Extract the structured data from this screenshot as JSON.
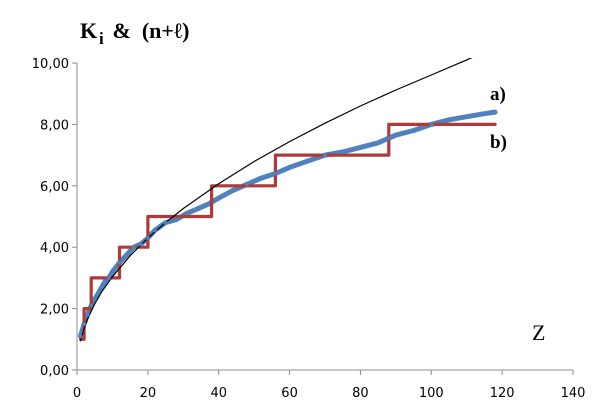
{
  "chart_data": {
    "type": "line",
    "title_main": "K",
    "title_sub": "i",
    "title_rest": " &  (n+ℓ)",
    "xlabel": "Z",
    "ylabel": "",
    "xlim": [
      0,
      140
    ],
    "ylim": [
      0,
      10
    ],
    "x_ticks": [
      "0",
      "20",
      "40",
      "60",
      "80",
      "100",
      "120",
      "140"
    ],
    "y_ticks": [
      "0,00",
      "2,00",
      "4,00",
      "6,00",
      "8,00",
      "10,00"
    ],
    "grid": false,
    "colors": {
      "a": "#4f81bd",
      "b": "#b03a3a",
      "trend": "#000000"
    },
    "annotations": [
      {
        "text": "a)",
        "series": "a"
      },
      {
        "text": "b)",
        "series": "b"
      }
    ],
    "series": [
      {
        "key": "a",
        "x": [
          1,
          2,
          3,
          4,
          5,
          6,
          7,
          8,
          9,
          10,
          12,
          14,
          16,
          18,
          20,
          22,
          25,
          28,
          31,
          34,
          37,
          40,
          44,
          48,
          52,
          56,
          60,
          65,
          70,
          75,
          80,
          85,
          88,
          90,
          95,
          100,
          105,
          110,
          115,
          118
        ],
        "y": [
          1.1,
          1.5,
          1.8,
          2.1,
          2.3,
          2.5,
          2.7,
          2.9,
          3.0,
          3.2,
          3.5,
          3.75,
          4.0,
          4.1,
          4.3,
          4.55,
          4.8,
          4.9,
          5.1,
          5.25,
          5.4,
          5.6,
          5.85,
          6.05,
          6.25,
          6.4,
          6.6,
          6.8,
          7.0,
          7.1,
          7.25,
          7.4,
          7.55,
          7.65,
          7.8,
          8.0,
          8.15,
          8.25,
          8.35,
          8.4
        ]
      },
      {
        "key": "b",
        "x": [
          1,
          2,
          2,
          4,
          4,
          12,
          12,
          20,
          20,
          38,
          38,
          56,
          56,
          88,
          88,
          118
        ],
        "y": [
          1,
          1,
          2,
          2,
          3,
          3,
          4,
          4,
          5,
          5,
          6,
          6,
          7,
          7,
          8,
          8
        ]
      },
      {
        "key": "trend",
        "x": [
          1,
          2,
          3,
          5,
          7,
          10,
          15,
          20,
          25,
          30,
          40,
          50,
          60,
          70,
          80,
          90,
          100,
          110,
          118
        ],
        "y": [
          0.95,
          1.35,
          1.67,
          2.15,
          2.55,
          3.04,
          3.72,
          4.3,
          4.8,
          5.26,
          6.07,
          6.79,
          7.44,
          8.04,
          8.6,
          9.12,
          9.61,
          10.1,
          10.5
        ]
      }
    ]
  }
}
